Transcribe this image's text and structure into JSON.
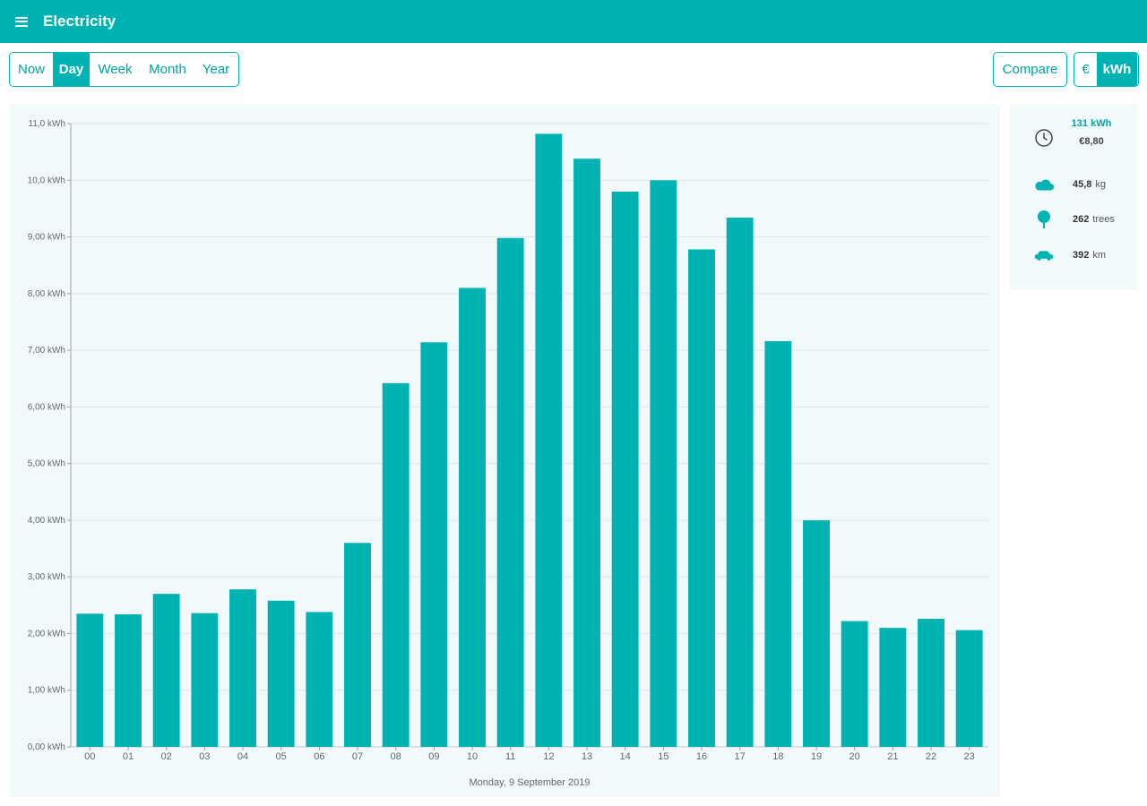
{
  "app": {
    "title": "Electricity"
  },
  "range_tabs": [
    {
      "label": "Now",
      "active": false
    },
    {
      "label": "Day",
      "active": true
    },
    {
      "label": "Week",
      "active": false
    },
    {
      "label": "Month",
      "active": false
    },
    {
      "label": "Year",
      "active": false
    }
  ],
  "compare_label": "Compare",
  "unit_toggle": [
    {
      "label": "€",
      "active": false
    },
    {
      "label": "kWh",
      "active": true
    }
  ],
  "stats": {
    "total_kwh": "131 kWh",
    "total_cost": "€8,80",
    "co2": {
      "value": "45,8",
      "unit": "kg",
      "icon": "cloud-co2-icon"
    },
    "trees": {
      "value": "262",
      "unit": "trees",
      "icon": "tree-icon"
    },
    "car": {
      "value": "392",
      "unit": "km",
      "icon": "car-icon"
    },
    "clock_icon": "clock-icon"
  },
  "colors": {
    "accent": "#00b3b3",
    "panel": "#f1f9fa",
    "bar": "#00b3b3"
  },
  "chart_data": {
    "type": "bar",
    "xlabel": "Monday, 9 September 2019",
    "categories": [
      "00",
      "01",
      "02",
      "03",
      "04",
      "05",
      "06",
      "07",
      "08",
      "09",
      "10",
      "11",
      "12",
      "13",
      "14",
      "15",
      "16",
      "17",
      "18",
      "19",
      "20",
      "21",
      "22",
      "23"
    ],
    "values": [
      2.35,
      2.34,
      2.7,
      2.36,
      2.78,
      2.58,
      2.38,
      3.6,
      6.42,
      7.14,
      8.1,
      8.98,
      10.82,
      10.38,
      9.8,
      10.0,
      8.78,
      9.34,
      7.16,
      4.0,
      2.22,
      2.1,
      2.26,
      2.06
    ],
    "ylim": [
      0,
      11
    ],
    "yticks": [
      0,
      1,
      2,
      3,
      4,
      5,
      6,
      7,
      8,
      9,
      10,
      11
    ],
    "ytick_labels": [
      "0,00 kWh",
      "1,00 kWh",
      "2,00 kWh",
      "3,00 kWh",
      "4,00 kWh",
      "5,00 kWh",
      "6,00 kWh",
      "7,00 kWh",
      "8,00 kWh",
      "9,00 kWh",
      "10,0 kWh",
      "11,0 kWh"
    ],
    "grid": true,
    "series": [
      {
        "values": [
          2.35,
          2.34,
          2.7,
          2.36,
          2.78,
          2.58,
          2.38,
          3.6,
          6.42,
          7.14,
          8.1,
          8.98,
          10.82,
          10.38,
          9.8,
          10.0,
          8.78,
          9.34,
          7.16,
          4.0,
          2.22,
          2.1,
          2.26,
          2.06
        ]
      }
    ]
  }
}
